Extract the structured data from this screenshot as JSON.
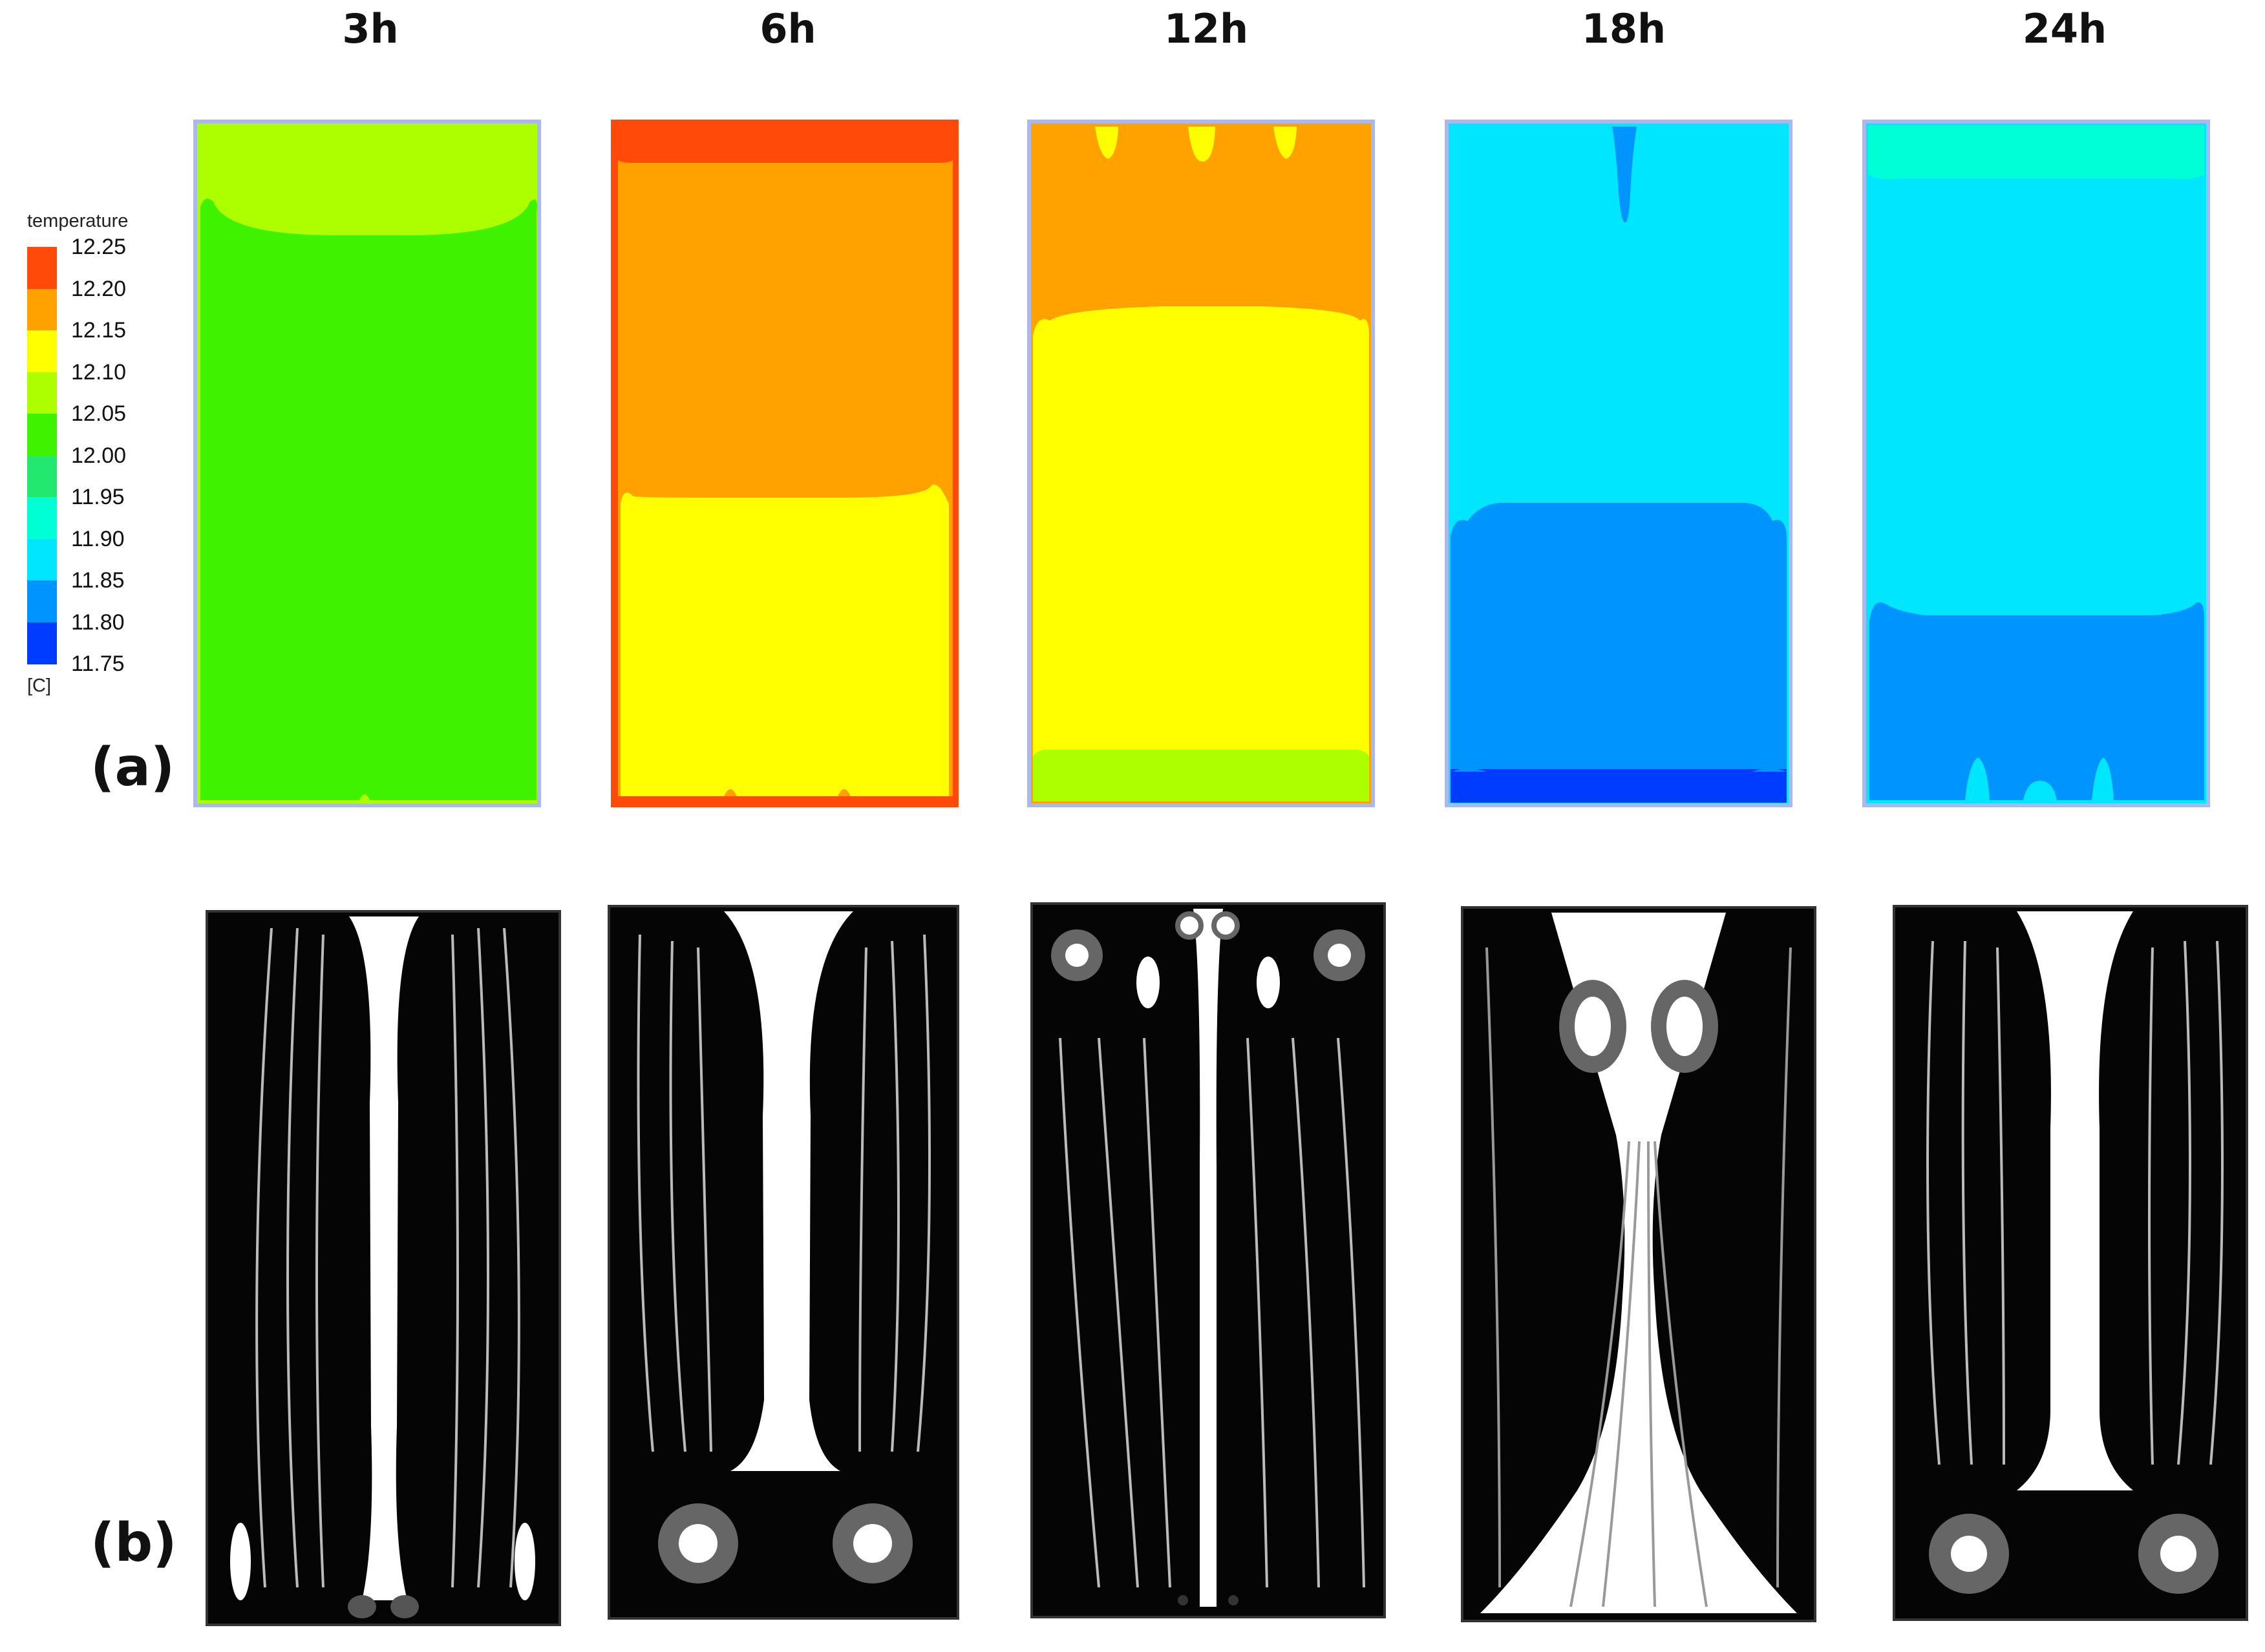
{
  "time_labels": [
    "3h",
    "6h",
    "12h",
    "18h",
    "24h"
  ],
  "panel_labels": {
    "a": "(a)",
    "b": "(b)"
  },
  "legend": {
    "title": "temperature",
    "unit": "[C]",
    "ticks": [
      "12.25",
      "12.20",
      "12.15",
      "12.10",
      "12.05",
      "12.00",
      "11.95",
      "11.90",
      "11.85",
      "11.80",
      "11.75"
    ],
    "band_colors": [
      "#ff4a0a",
      "#ffa200",
      "#ffff00",
      "#adff00",
      "#3ff200",
      "#22e870",
      "#00ffd4",
      "#00e6ff",
      "#0094ff",
      "#003cff"
    ]
  },
  "colors": {
    "c_redorange": "#ff4a0a",
    "c_orange": "#ffa200",
    "c_yellow": "#ffff00",
    "c_lime": "#adff00",
    "c_green": "#3ff200",
    "c_aqua": "#00ffd4",
    "c_cyan": "#00e6ff",
    "c_skyblue": "#0094ff",
    "c_blue": "#003cff",
    "border": "#a8b8f0"
  }
}
